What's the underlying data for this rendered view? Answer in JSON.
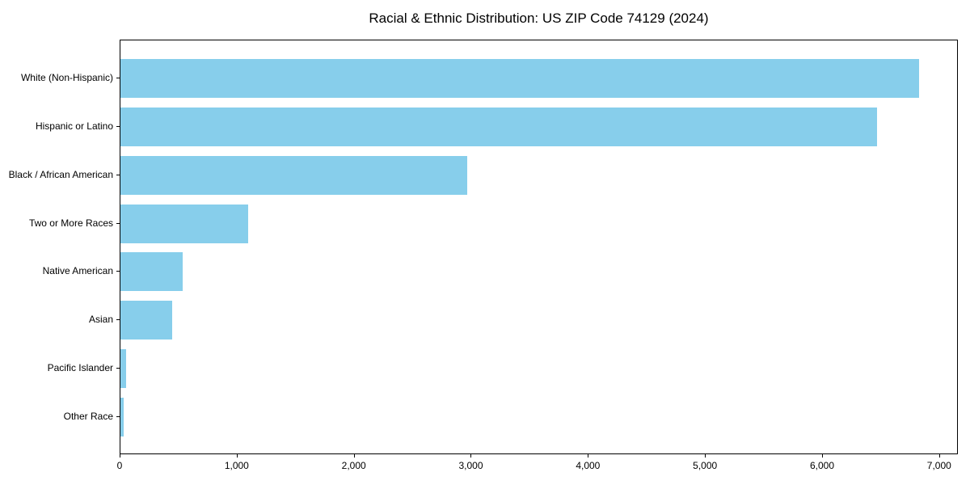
{
  "chart_data": {
    "type": "bar",
    "orientation": "horizontal",
    "title": "Racial & Ethnic Distribution: US ZIP Code 74129 (2024)",
    "categories": [
      "White (Non-Hispanic)",
      "Hispanic or Latino",
      "Black / African American",
      "Two or More Races",
      "Native American",
      "Asian",
      "Pacific Islander",
      "Other Race"
    ],
    "values": [
      6820,
      6460,
      2960,
      1090,
      530,
      440,
      50,
      30
    ],
    "xlabel": "",
    "ylabel": "",
    "xlim": [
      0,
      7160
    ],
    "x_ticks": [
      {
        "value": 0,
        "label": "0"
      },
      {
        "value": 1000,
        "label": "1,000"
      },
      {
        "value": 2000,
        "label": "2,000"
      },
      {
        "value": 3000,
        "label": "3,000"
      },
      {
        "value": 4000,
        "label": "4,000"
      },
      {
        "value": 5000,
        "label": "5,000"
      },
      {
        "value": 6000,
        "label": "6,000"
      },
      {
        "value": 7000,
        "label": "7,000"
      }
    ],
    "grid": false,
    "legend": null
  },
  "colors": {
    "bar": "#87CEEB",
    "axis": "#000000",
    "text": "#000000",
    "background": "#ffffff"
  }
}
